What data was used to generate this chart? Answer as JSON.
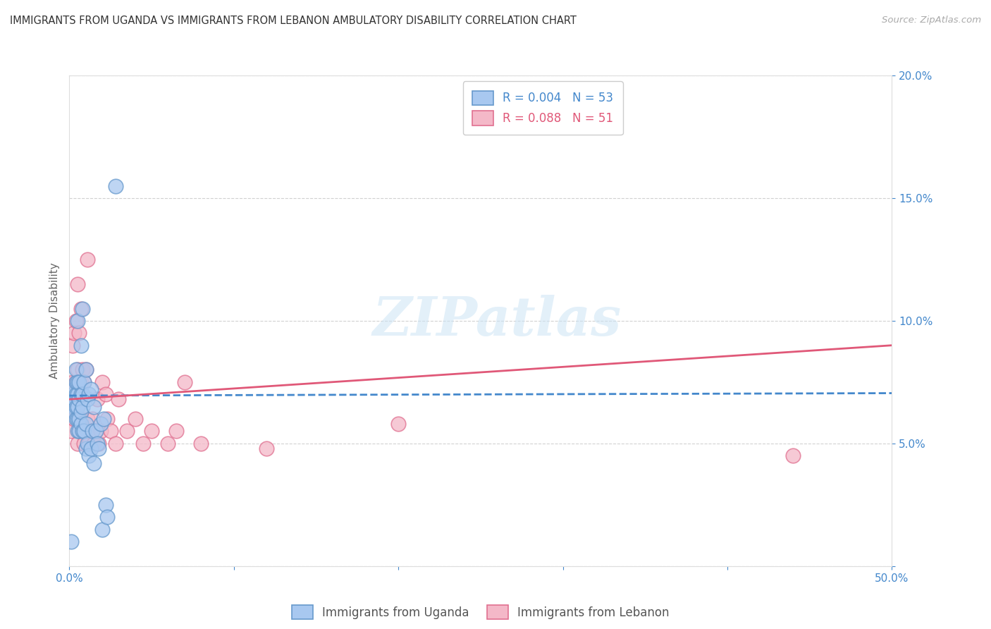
{
  "title": "IMMIGRANTS FROM UGANDA VS IMMIGRANTS FROM LEBANON AMBULATORY DISABILITY CORRELATION CHART",
  "source": "Source: ZipAtlas.com",
  "ylabel": "Ambulatory Disability",
  "legend_labels": [
    "Immigrants from Uganda",
    "Immigrants from Lebanon"
  ],
  "legend_r": [
    "R = 0.004",
    "R = 0.088"
  ],
  "legend_n": [
    "N = 53",
    "N = 51"
  ],
  "xlim": [
    0.0,
    0.5
  ],
  "ylim": [
    0.0,
    0.2
  ],
  "xticks": [
    0.0,
    0.1,
    0.2,
    0.3,
    0.4,
    0.5
  ],
  "yticks": [
    0.0,
    0.05,
    0.1,
    0.15,
    0.2
  ],
  "xticklabels_sides": [
    "0.0%",
    "",
    "",
    "",
    "",
    "50.0%"
  ],
  "yticklabels": [
    "",
    "5.0%",
    "10.0%",
    "15.0%",
    "20.0%"
  ],
  "color_uganda": "#a8c8f0",
  "color_uganda_edge": "#6699cc",
  "color_lebanon": "#f4b8c8",
  "color_lebanon_edge": "#e07090",
  "color_line_uganda": "#4488cc",
  "color_line_lebanon": "#e05878",
  "axis_color": "#4488cc",
  "grid_color": "#cccccc",
  "watermark": "ZIPatlas",
  "uganda_x": [
    0.001,
    0.002,
    0.002,
    0.003,
    0.003,
    0.003,
    0.003,
    0.004,
    0.004,
    0.004,
    0.004,
    0.004,
    0.005,
    0.005,
    0.005,
    0.005,
    0.005,
    0.005,
    0.006,
    0.006,
    0.006,
    0.006,
    0.007,
    0.007,
    0.007,
    0.007,
    0.008,
    0.008,
    0.008,
    0.008,
    0.009,
    0.009,
    0.01,
    0.01,
    0.01,
    0.011,
    0.011,
    0.012,
    0.012,
    0.013,
    0.013,
    0.014,
    0.015,
    0.015,
    0.016,
    0.017,
    0.018,
    0.019,
    0.02,
    0.021,
    0.022,
    0.023,
    0.028
  ],
  "uganda_y": [
    0.01,
    0.07,
    0.068,
    0.065,
    0.063,
    0.068,
    0.072,
    0.06,
    0.065,
    0.07,
    0.075,
    0.08,
    0.055,
    0.06,
    0.065,
    0.07,
    0.075,
    0.1,
    0.055,
    0.06,
    0.068,
    0.075,
    0.058,
    0.063,
    0.07,
    0.09,
    0.055,
    0.065,
    0.07,
    0.105,
    0.055,
    0.075,
    0.048,
    0.058,
    0.08,
    0.05,
    0.068,
    0.045,
    0.07,
    0.048,
    0.072,
    0.055,
    0.042,
    0.065,
    0.055,
    0.05,
    0.048,
    0.058,
    0.015,
    0.06,
    0.025,
    0.02,
    0.155
  ],
  "lebanon_x": [
    0.001,
    0.002,
    0.002,
    0.003,
    0.003,
    0.004,
    0.004,
    0.004,
    0.005,
    0.005,
    0.005,
    0.005,
    0.006,
    0.006,
    0.006,
    0.007,
    0.007,
    0.007,
    0.008,
    0.008,
    0.009,
    0.009,
    0.01,
    0.01,
    0.011,
    0.011,
    0.012,
    0.013,
    0.014,
    0.015,
    0.016,
    0.017,
    0.018,
    0.019,
    0.02,
    0.022,
    0.023,
    0.025,
    0.028,
    0.03,
    0.035,
    0.04,
    0.045,
    0.05,
    0.06,
    0.065,
    0.07,
    0.08,
    0.12,
    0.2,
    0.44
  ],
  "lebanon_y": [
    0.055,
    0.075,
    0.09,
    0.06,
    0.095,
    0.065,
    0.075,
    0.1,
    0.05,
    0.065,
    0.08,
    0.115,
    0.055,
    0.07,
    0.095,
    0.06,
    0.075,
    0.105,
    0.055,
    0.08,
    0.05,
    0.075,
    0.055,
    0.08,
    0.06,
    0.125,
    0.05,
    0.055,
    0.06,
    0.05,
    0.055,
    0.068,
    0.05,
    0.055,
    0.075,
    0.07,
    0.06,
    0.055,
    0.05,
    0.068,
    0.055,
    0.06,
    0.05,
    0.055,
    0.05,
    0.055,
    0.075,
    0.05,
    0.048,
    0.058,
    0.045
  ],
  "line_uganda_x0": 0.0,
  "line_uganda_x1": 0.5,
  "line_uganda_y0": 0.0695,
  "line_uganda_y1": 0.0705,
  "line_lebanon_x0": 0.0,
  "line_lebanon_x1": 0.5,
  "line_lebanon_y0": 0.068,
  "line_lebanon_y1": 0.09
}
